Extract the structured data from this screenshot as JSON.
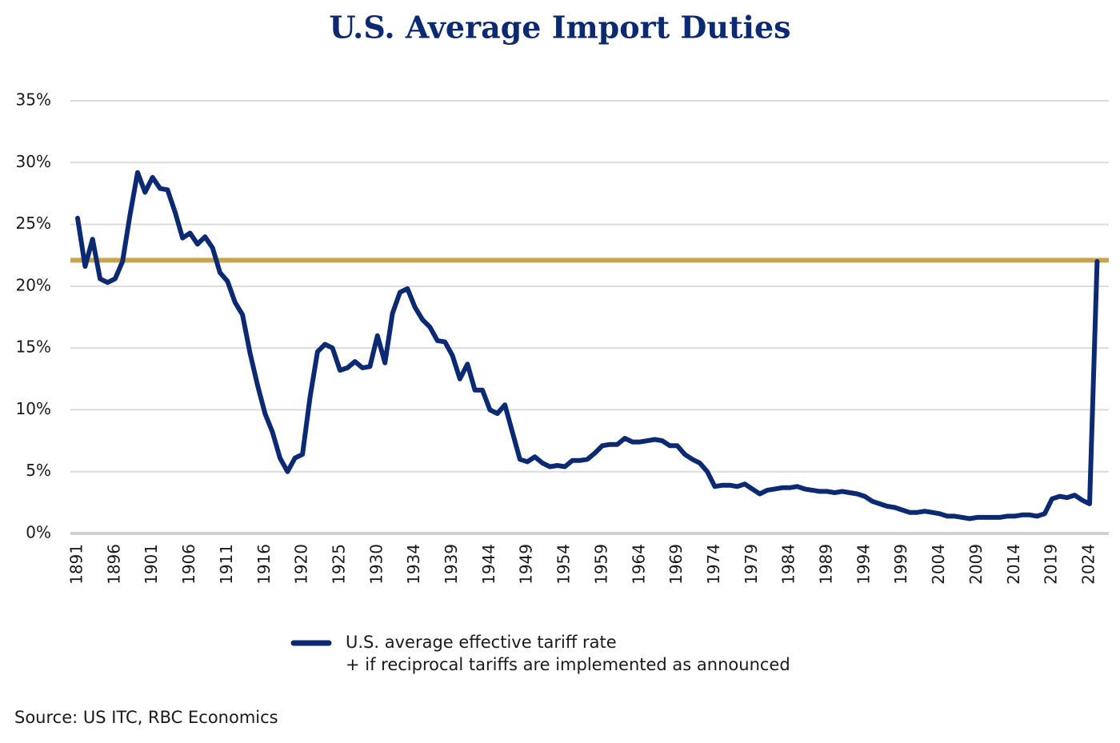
{
  "chart_data": {
    "type": "line",
    "title": "U.S. Average Import Duties",
    "source": "Source: US ITC, RBC Economics",
    "categories": [
      "1891",
      null,
      null,
      null,
      null,
      "1896",
      null,
      null,
      null,
      null,
      "1901",
      null,
      null,
      null,
      null,
      "1906",
      null,
      null,
      null,
      null,
      "1911",
      null,
      null,
      null,
      null,
      "1916",
      null,
      null,
      null,
      null,
      "1920",
      null,
      null,
      null,
      null,
      "1925",
      null,
      null,
      null,
      null,
      "1930",
      null,
      null,
      null,
      null,
      "1934",
      null,
      null,
      null,
      null,
      "1939",
      null,
      null,
      null,
      null,
      "1944",
      null,
      null,
      null,
      null,
      "1949",
      null,
      null,
      null,
      null,
      "1954",
      null,
      null,
      null,
      null,
      "1959",
      null,
      null,
      null,
      null,
      "1964",
      null,
      null,
      null,
      null,
      "1969",
      null,
      null,
      null,
      null,
      "1974",
      null,
      null,
      null,
      null,
      "1979",
      null,
      null,
      null,
      null,
      "1984",
      null,
      null,
      null,
      null,
      "1989",
      null,
      null,
      null,
      null,
      "1994",
      null,
      null,
      null,
      null,
      "1999",
      null,
      null,
      null,
      null,
      "2004",
      null,
      null,
      null,
      null,
      "2009",
      null,
      null,
      null,
      null,
      "2014",
      null,
      null,
      null,
      null,
      "2019",
      null,
      null,
      null,
      null,
      "2024",
      null
    ],
    "series": [
      {
        "name": "U.S. average effective tariff rate",
        "color": "#0c2a72",
        "values": [
          25.5,
          21.6,
          23.8,
          20.6,
          20.3,
          20.6,
          22.0,
          25.8,
          29.2,
          27.6,
          28.8,
          27.9,
          27.8,
          26.0,
          23.9,
          24.3,
          23.4,
          24.0,
          23.1,
          21.1,
          20.4,
          18.7,
          17.7,
          14.6,
          12.0,
          9.7,
          8.2,
          6.1,
          5.0,
          6.1,
          6.4,
          11.0,
          14.7,
          15.3,
          15.0,
          13.2,
          13.4,
          13.9,
          13.4,
          13.5,
          16.0,
          13.8,
          17.8,
          19.5,
          19.8,
          18.3,
          17.3,
          16.7,
          15.6,
          15.5,
          14.4,
          12.5,
          13.7,
          11.6,
          11.6,
          10.0,
          9.7,
          10.4,
          8.2,
          6.0,
          5.8,
          6.2,
          5.7,
          5.4,
          5.5,
          5.4,
          5.9,
          5.9,
          6.0,
          6.5,
          7.1,
          7.2,
          7.2,
          7.7,
          7.4,
          7.4,
          7.5,
          7.6,
          7.5,
          7.1,
          7.1,
          6.4,
          6.0,
          5.7,
          5.0,
          3.8,
          3.9,
          3.9,
          3.8,
          4.0,
          3.6,
          3.2,
          3.5,
          3.6,
          3.7,
          3.7,
          3.8,
          3.6,
          3.5,
          3.4,
          3.4,
          3.3,
          3.4,
          3.3,
          3.2,
          3.0,
          2.6,
          2.4,
          2.2,
          2.1,
          1.9,
          1.7,
          1.7,
          1.8,
          1.7,
          1.6,
          1.4,
          1.4,
          1.3,
          1.2,
          1.3,
          1.3,
          1.3,
          1.3,
          1.4,
          1.4,
          1.5,
          1.5,
          1.4,
          1.6,
          2.8,
          3.0,
          2.9,
          3.1,
          2.7,
          2.4,
          22.0
        ]
      }
    ],
    "legend_note": "+ if reciprocal tariffs are implemented as announced",
    "reference_line": {
      "value": 22.1,
      "color": "#c9a44c"
    },
    "ylim": [
      0,
      35
    ],
    "yticks": [
      {
        "value": 0,
        "label": "0%"
      },
      {
        "value": 5,
        "label": "5%"
      },
      {
        "value": 10,
        "label": "10%"
      },
      {
        "value": 15,
        "label": "15%"
      },
      {
        "value": 20,
        "label": "20%"
      },
      {
        "value": 25,
        "label": "25%"
      },
      {
        "value": 30,
        "label": "30%"
      },
      {
        "value": 35,
        "label": "35%"
      }
    ],
    "grid": true
  }
}
